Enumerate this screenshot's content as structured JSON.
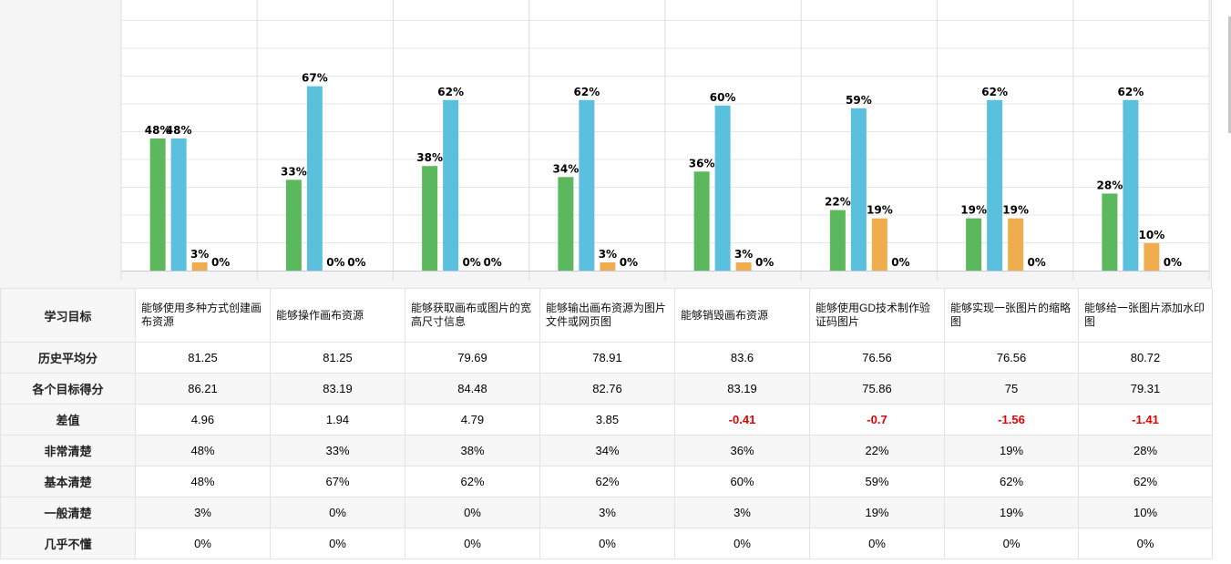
{
  "chart_data": {
    "type": "bar",
    "categories": [
      "能够使用多种方式创建画布资源",
      "能够操作画布资源",
      "能够获取画布或图片的宽高尺寸信息",
      "能够输出画布资源为图片文件或网页图",
      "能够销毁画布资源",
      "能够使用GD技术制作验证码图片",
      "能够实现一张图片的缩略图",
      "能够给一张图片添加水印图"
    ],
    "series": [
      {
        "name": "非常清楚",
        "color": "#5cb85c",
        "values": [
          48,
          33,
          38,
          34,
          36,
          22,
          19,
          28
        ]
      },
      {
        "name": "基本清楚",
        "color": "#5bc0de",
        "values": [
          48,
          67,
          62,
          62,
          60,
          59,
          62,
          62
        ]
      },
      {
        "name": "一般清楚",
        "color": "#f0ad4e",
        "values": [
          3,
          0,
          0,
          3,
          3,
          19,
          19,
          10
        ]
      },
      {
        "name": "几乎不懂",
        "color": "#d9534f",
        "values": [
          0,
          0,
          0,
          0,
          0,
          0,
          0,
          0
        ]
      }
    ],
    "value_suffix": "%",
    "ylim": [
      0,
      100
    ],
    "grid": true,
    "title": "",
    "xlabel": "",
    "ylabel": ""
  },
  "table": {
    "header_label": "学习目标",
    "rows": [
      {
        "label": "历史平均分",
        "values": [
          "81.25",
          "81.25",
          "79.69",
          "78.91",
          "83.6",
          "76.56",
          "76.56",
          "80.72"
        ]
      },
      {
        "label": "各个目标得分",
        "values": [
          "86.21",
          "83.19",
          "84.48",
          "82.76",
          "83.19",
          "75.86",
          "75",
          "79.31"
        ]
      },
      {
        "label": "差值",
        "values": [
          "4.96",
          "1.94",
          "4.79",
          "3.85",
          "-0.41",
          "-0.7",
          "-1.56",
          "-1.41"
        ]
      },
      {
        "label": "非常清楚",
        "values": [
          "48%",
          "33%",
          "38%",
          "34%",
          "36%",
          "22%",
          "19%",
          "28%"
        ]
      },
      {
        "label": "基本清楚",
        "values": [
          "48%",
          "67%",
          "62%",
          "62%",
          "60%",
          "59%",
          "62%",
          "62%"
        ]
      },
      {
        "label": "一般清楚",
        "values": [
          "3%",
          "0%",
          "0%",
          "3%",
          "3%",
          "19%",
          "19%",
          "10%"
        ]
      },
      {
        "label": "几乎不懂",
        "values": [
          "0%",
          "0%",
          "0%",
          "0%",
          "0%",
          "0%",
          "0%",
          "0%"
        ]
      }
    ],
    "negative_color": "#e60000"
  }
}
